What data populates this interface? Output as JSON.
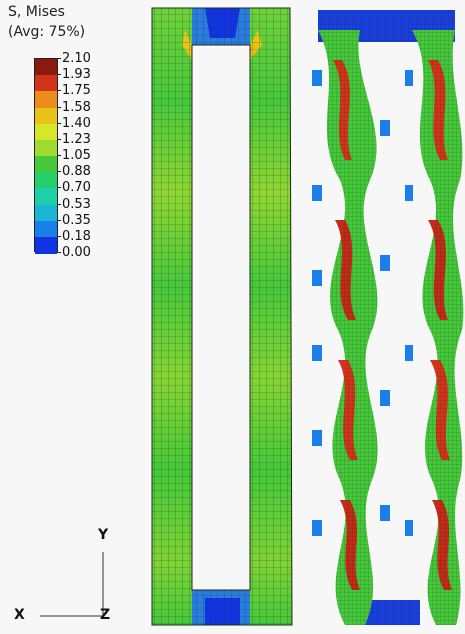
{
  "legend": {
    "title_line1": "S, Mises",
    "title_line2": "(Avg: 75%)",
    "entries": [
      {
        "value": "2.10",
        "color": "#8b1a0e"
      },
      {
        "value": "1.93",
        "color": "#d2331a"
      },
      {
        "value": "1.75",
        "color": "#ec8c1d"
      },
      {
        "value": "1.58",
        "color": "#e8c217"
      },
      {
        "value": "1.40",
        "color": "#d6e62a"
      },
      {
        "value": "1.23",
        "color": "#9edc2e"
      },
      {
        "value": "1.05",
        "color": "#45c83a"
      },
      {
        "value": "0.88",
        "color": "#26cf6b"
      },
      {
        "value": "0.70",
        "color": "#1ed0a8"
      },
      {
        "value": "0.53",
        "color": "#1ab6d6"
      },
      {
        "value": "0.35",
        "color": "#1a7fe8"
      },
      {
        "value": "0.18",
        "color": "#1232e6"
      },
      {
        "value": "0.00",
        "color": "#0a18c8"
      }
    ]
  },
  "triad": {
    "y_label": "Y",
    "x_label": "X",
    "z_label": "Z"
  },
  "models": {
    "left_model": "undeformed-frame",
    "right_model": "deformed-frame"
  }
}
